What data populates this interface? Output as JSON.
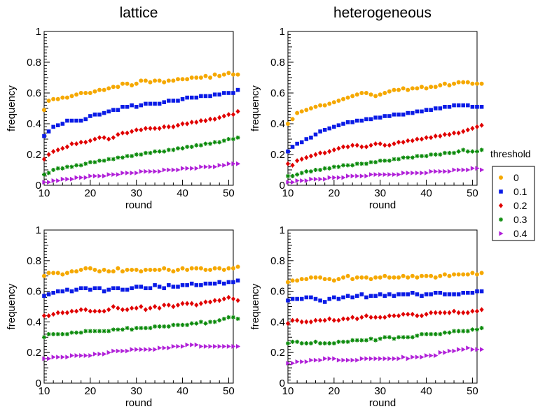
{
  "chart_data": [
    {
      "type": "scatter",
      "panel": "top-left",
      "title": "lattice",
      "xlabel": "round",
      "ylabel": "frequency",
      "xlim": [
        10,
        51
      ],
      "ylim": [
        0,
        1
      ],
      "xticks": [
        10,
        20,
        30,
        40,
        50
      ],
      "yticks": [
        0,
        0.2,
        0.4,
        0.6,
        0.8,
        1
      ],
      "ytick_labels": [
        "0",
        "0.2",
        "0.4",
        "0.6",
        "0.8",
        "1"
      ],
      "grid": false,
      "series": [
        {
          "name": "0",
          "values": [
            0.49,
            0.55,
            0.56,
            0.56,
            0.57,
            0.57,
            0.58,
            0.59,
            0.6,
            0.6,
            0.6,
            0.61,
            0.62,
            0.62,
            0.63,
            0.64,
            0.64,
            0.66,
            0.66,
            0.65,
            0.66,
            0.68,
            0.68,
            0.67,
            0.68,
            0.68,
            0.67,
            0.68,
            0.68,
            0.69,
            0.69,
            0.69,
            0.7,
            0.7,
            0.7,
            0.71,
            0.7,
            0.72,
            0.71,
            0.72,
            0.73,
            0.72,
            0.72
          ]
        },
        {
          "name": "0.1",
          "values": [
            0.32,
            0.35,
            0.38,
            0.39,
            0.4,
            0.42,
            0.42,
            0.42,
            0.42,
            0.43,
            0.45,
            0.46,
            0.46,
            0.47,
            0.48,
            0.49,
            0.49,
            0.51,
            0.51,
            0.52,
            0.51,
            0.52,
            0.53,
            0.53,
            0.53,
            0.53,
            0.54,
            0.55,
            0.55,
            0.55,
            0.56,
            0.57,
            0.57,
            0.57,
            0.58,
            0.58,
            0.58,
            0.59,
            0.59,
            0.6,
            0.6,
            0.6,
            0.62
          ]
        },
        {
          "name": "0.2",
          "values": [
            0.17,
            0.2,
            0.22,
            0.23,
            0.24,
            0.25,
            0.27,
            0.27,
            0.28,
            0.28,
            0.29,
            0.3,
            0.31,
            0.31,
            0.3,
            0.31,
            0.33,
            0.34,
            0.34,
            0.35,
            0.36,
            0.36,
            0.37,
            0.37,
            0.37,
            0.37,
            0.38,
            0.38,
            0.38,
            0.39,
            0.4,
            0.4,
            0.41,
            0.41,
            0.42,
            0.42,
            0.43,
            0.43,
            0.44,
            0.45,
            0.46,
            0.46,
            0.48
          ]
        },
        {
          "name": "0.3",
          "values": [
            0.07,
            0.08,
            0.1,
            0.11,
            0.11,
            0.12,
            0.12,
            0.13,
            0.13,
            0.14,
            0.15,
            0.15,
            0.16,
            0.16,
            0.17,
            0.17,
            0.18,
            0.18,
            0.19,
            0.19,
            0.2,
            0.2,
            0.21,
            0.21,
            0.22,
            0.22,
            0.22,
            0.23,
            0.23,
            0.24,
            0.24,
            0.25,
            0.25,
            0.26,
            0.26,
            0.27,
            0.27,
            0.28,
            0.28,
            0.29,
            0.3,
            0.3,
            0.31
          ]
        },
        {
          "name": "0.4",
          "values": [
            0.02,
            0.02,
            0.03,
            0.03,
            0.04,
            0.04,
            0.04,
            0.05,
            0.05,
            0.05,
            0.06,
            0.06,
            0.06,
            0.06,
            0.07,
            0.07,
            0.07,
            0.08,
            0.08,
            0.08,
            0.08,
            0.09,
            0.09,
            0.09,
            0.09,
            0.09,
            0.1,
            0.1,
            0.1,
            0.1,
            0.11,
            0.11,
            0.11,
            0.11,
            0.12,
            0.12,
            0.12,
            0.12,
            0.13,
            0.13,
            0.14,
            0.14,
            0.14
          ]
        }
      ]
    },
    {
      "type": "scatter",
      "panel": "top-right",
      "title": "heterogeneous",
      "xlabel": "round",
      "ylabel": "frequency",
      "xlim": [
        10,
        51
      ],
      "ylim": [
        0,
        1
      ],
      "xticks": [
        10,
        20,
        30,
        40,
        50
      ],
      "yticks": [
        0,
        0.2,
        0.4,
        0.6,
        0.8,
        1
      ],
      "ytick_labels": [
        "0",
        "0.2",
        "0.4",
        "0.6",
        "0.8",
        "1"
      ],
      "grid": false,
      "series": [
        {
          "name": "0",
          "values": [
            0.4,
            0.43,
            0.47,
            0.48,
            0.49,
            0.5,
            0.51,
            0.52,
            0.52,
            0.53,
            0.54,
            0.55,
            0.56,
            0.57,
            0.58,
            0.59,
            0.6,
            0.6,
            0.59,
            0.58,
            0.59,
            0.6,
            0.61,
            0.62,
            0.62,
            0.63,
            0.62,
            0.63,
            0.63,
            0.64,
            0.63,
            0.64,
            0.64,
            0.65,
            0.66,
            0.65,
            0.66,
            0.67,
            0.67,
            0.67,
            0.66,
            0.66,
            0.66
          ]
        },
        {
          "name": "0.1",
          "values": [
            0.22,
            0.25,
            0.27,
            0.28,
            0.3,
            0.31,
            0.33,
            0.35,
            0.36,
            0.37,
            0.38,
            0.39,
            0.4,
            0.41,
            0.41,
            0.42,
            0.42,
            0.43,
            0.43,
            0.44,
            0.44,
            0.45,
            0.45,
            0.46,
            0.46,
            0.46,
            0.47,
            0.47,
            0.48,
            0.48,
            0.49,
            0.49,
            0.5,
            0.5,
            0.51,
            0.51,
            0.52,
            0.52,
            0.52,
            0.52,
            0.51,
            0.51,
            0.51
          ]
        },
        {
          "name": "0.2",
          "values": [
            0.14,
            0.13,
            0.16,
            0.17,
            0.18,
            0.19,
            0.2,
            0.21,
            0.21,
            0.22,
            0.23,
            0.24,
            0.25,
            0.25,
            0.26,
            0.26,
            0.25,
            0.25,
            0.26,
            0.27,
            0.27,
            0.26,
            0.26,
            0.27,
            0.28,
            0.28,
            0.29,
            0.29,
            0.3,
            0.3,
            0.31,
            0.31,
            0.32,
            0.32,
            0.33,
            0.33,
            0.34,
            0.34,
            0.35,
            0.36,
            0.37,
            0.38,
            0.39
          ]
        },
        {
          "name": "0.3",
          "values": [
            0.06,
            0.06,
            0.07,
            0.08,
            0.09,
            0.09,
            0.1,
            0.1,
            0.11,
            0.11,
            0.12,
            0.12,
            0.13,
            0.13,
            0.13,
            0.14,
            0.14,
            0.14,
            0.15,
            0.15,
            0.16,
            0.16,
            0.16,
            0.17,
            0.17,
            0.18,
            0.18,
            0.18,
            0.19,
            0.19,
            0.19,
            0.2,
            0.2,
            0.2,
            0.21,
            0.21,
            0.21,
            0.22,
            0.23,
            0.22,
            0.22,
            0.22,
            0.23
          ]
        },
        {
          "name": "0.4",
          "values": [
            0.02,
            0.02,
            0.03,
            0.03,
            0.03,
            0.04,
            0.04,
            0.04,
            0.04,
            0.05,
            0.05,
            0.05,
            0.05,
            0.06,
            0.06,
            0.06,
            0.06,
            0.06,
            0.07,
            0.07,
            0.07,
            0.07,
            0.07,
            0.07,
            0.07,
            0.08,
            0.08,
            0.08,
            0.08,
            0.08,
            0.08,
            0.09,
            0.09,
            0.09,
            0.09,
            0.09,
            0.1,
            0.1,
            0.1,
            0.1,
            0.11,
            0.11,
            0.1
          ]
        }
      ]
    },
    {
      "type": "scatter",
      "panel": "bottom-left",
      "title": "",
      "xlabel": "round",
      "ylabel": "frequency",
      "xlim": [
        10,
        51
      ],
      "ylim": [
        0,
        1
      ],
      "xticks": [
        10,
        20,
        30,
        40,
        50
      ],
      "yticks": [
        0,
        0.2,
        0.4,
        0.6,
        0.8,
        1
      ],
      "ytick_labels": [
        "0",
        "0.2",
        "0.4",
        "0.6",
        "0.8",
        "1"
      ],
      "grid": false,
      "series": [
        {
          "name": "0",
          "values": [
            0.7,
            0.72,
            0.72,
            0.72,
            0.71,
            0.72,
            0.73,
            0.73,
            0.74,
            0.75,
            0.75,
            0.74,
            0.73,
            0.74,
            0.73,
            0.73,
            0.75,
            0.73,
            0.74,
            0.74,
            0.74,
            0.73,
            0.74,
            0.74,
            0.74,
            0.74,
            0.75,
            0.74,
            0.73,
            0.74,
            0.75,
            0.74,
            0.75,
            0.75,
            0.75,
            0.74,
            0.74,
            0.75,
            0.75,
            0.74,
            0.75,
            0.75,
            0.76
          ]
        },
        {
          "name": "0.1",
          "values": [
            0.57,
            0.58,
            0.59,
            0.6,
            0.6,
            0.61,
            0.6,
            0.61,
            0.62,
            0.62,
            0.61,
            0.62,
            0.62,
            0.6,
            0.61,
            0.62,
            0.62,
            0.61,
            0.61,
            0.62,
            0.63,
            0.63,
            0.62,
            0.62,
            0.64,
            0.63,
            0.62,
            0.64,
            0.63,
            0.63,
            0.64,
            0.64,
            0.65,
            0.64,
            0.64,
            0.65,
            0.65,
            0.65,
            0.66,
            0.65,
            0.66,
            0.66,
            0.67
          ]
        },
        {
          "name": "0.2",
          "values": [
            0.44,
            0.44,
            0.45,
            0.46,
            0.46,
            0.46,
            0.47,
            0.47,
            0.48,
            0.48,
            0.47,
            0.47,
            0.47,
            0.47,
            0.48,
            0.5,
            0.49,
            0.48,
            0.48,
            0.49,
            0.49,
            0.5,
            0.48,
            0.49,
            0.5,
            0.49,
            0.51,
            0.51,
            0.5,
            0.51,
            0.52,
            0.52,
            0.52,
            0.51,
            0.52,
            0.53,
            0.53,
            0.54,
            0.54,
            0.55,
            0.56,
            0.55,
            0.54
          ]
        },
        {
          "name": "0.3",
          "values": [
            0.3,
            0.32,
            0.32,
            0.32,
            0.32,
            0.32,
            0.33,
            0.33,
            0.33,
            0.34,
            0.34,
            0.34,
            0.34,
            0.34,
            0.34,
            0.35,
            0.35,
            0.35,
            0.36,
            0.35,
            0.36,
            0.36,
            0.36,
            0.36,
            0.37,
            0.37,
            0.37,
            0.37,
            0.38,
            0.38,
            0.38,
            0.38,
            0.39,
            0.39,
            0.4,
            0.39,
            0.4,
            0.4,
            0.41,
            0.42,
            0.43,
            0.43,
            0.42
          ]
        },
        {
          "name": "0.4",
          "values": [
            0.16,
            0.16,
            0.17,
            0.17,
            0.17,
            0.17,
            0.18,
            0.18,
            0.18,
            0.18,
            0.18,
            0.19,
            0.19,
            0.19,
            0.2,
            0.21,
            0.21,
            0.21,
            0.21,
            0.22,
            0.22,
            0.22,
            0.22,
            0.22,
            0.22,
            0.23,
            0.23,
            0.23,
            0.24,
            0.24,
            0.24,
            0.25,
            0.25,
            0.25,
            0.24,
            0.24,
            0.24,
            0.24,
            0.24,
            0.24,
            0.24,
            0.24,
            0.24
          ]
        }
      ]
    },
    {
      "type": "scatter",
      "panel": "bottom-right",
      "title": "",
      "xlabel": "round",
      "ylabel": "frequency",
      "xlim": [
        10,
        51
      ],
      "ylim": [
        0,
        1
      ],
      "xticks": [
        10,
        20,
        30,
        40,
        50
      ],
      "yticks": [
        0,
        0.2,
        0.4,
        0.6,
        0.8,
        1
      ],
      "ytick_labels": [
        "0",
        "0.2",
        "0.4",
        "0.6",
        "0.8",
        "1"
      ],
      "grid": false,
      "series": [
        {
          "name": "0",
          "values": [
            0.66,
            0.67,
            0.67,
            0.68,
            0.68,
            0.69,
            0.69,
            0.69,
            0.68,
            0.68,
            0.67,
            0.68,
            0.69,
            0.7,
            0.68,
            0.69,
            0.69,
            0.69,
            0.68,
            0.69,
            0.69,
            0.7,
            0.69,
            0.69,
            0.69,
            0.7,
            0.69,
            0.7,
            0.69,
            0.7,
            0.7,
            0.7,
            0.69,
            0.7,
            0.71,
            0.7,
            0.71,
            0.71,
            0.71,
            0.71,
            0.72,
            0.71,
            0.72
          ]
        },
        {
          "name": "0.1",
          "values": [
            0.54,
            0.55,
            0.55,
            0.55,
            0.56,
            0.56,
            0.55,
            0.54,
            0.53,
            0.55,
            0.56,
            0.55,
            0.56,
            0.57,
            0.56,
            0.57,
            0.58,
            0.56,
            0.57,
            0.57,
            0.58,
            0.57,
            0.58,
            0.57,
            0.58,
            0.58,
            0.58,
            0.59,
            0.58,
            0.57,
            0.58,
            0.58,
            0.59,
            0.59,
            0.58,
            0.58,
            0.58,
            0.58,
            0.59,
            0.59,
            0.59,
            0.6,
            0.6
          ]
        },
        {
          "name": "0.2",
          "values": [
            0.39,
            0.41,
            0.41,
            0.4,
            0.4,
            0.4,
            0.41,
            0.41,
            0.41,
            0.42,
            0.41,
            0.41,
            0.42,
            0.42,
            0.43,
            0.42,
            0.43,
            0.44,
            0.43,
            0.43,
            0.43,
            0.43,
            0.44,
            0.44,
            0.44,
            0.45,
            0.45,
            0.45,
            0.44,
            0.44,
            0.45,
            0.46,
            0.46,
            0.46,
            0.46,
            0.46,
            0.47,
            0.46,
            0.46,
            0.46,
            0.47,
            0.47,
            0.48
          ]
        },
        {
          "name": "0.3",
          "values": [
            0.26,
            0.27,
            0.27,
            0.26,
            0.26,
            0.26,
            0.27,
            0.26,
            0.26,
            0.26,
            0.26,
            0.27,
            0.27,
            0.27,
            0.28,
            0.28,
            0.28,
            0.28,
            0.29,
            0.28,
            0.29,
            0.3,
            0.3,
            0.29,
            0.3,
            0.3,
            0.3,
            0.3,
            0.31,
            0.32,
            0.32,
            0.32,
            0.32,
            0.32,
            0.33,
            0.33,
            0.34,
            0.34,
            0.34,
            0.34,
            0.35,
            0.35,
            0.36
          ]
        },
        {
          "name": "0.4",
          "values": [
            0.13,
            0.13,
            0.14,
            0.14,
            0.14,
            0.15,
            0.15,
            0.15,
            0.16,
            0.16,
            0.16,
            0.15,
            0.15,
            0.15,
            0.15,
            0.15,
            0.16,
            0.16,
            0.16,
            0.16,
            0.16,
            0.16,
            0.16,
            0.16,
            0.16,
            0.17,
            0.16,
            0.17,
            0.17,
            0.17,
            0.18,
            0.18,
            0.18,
            0.2,
            0.2,
            0.21,
            0.21,
            0.22,
            0.22,
            0.23,
            0.22,
            0.22,
            0.22
          ]
        }
      ]
    }
  ],
  "legend": {
    "title": "threshold",
    "placement": "right",
    "entries": [
      {
        "label": "0",
        "color": "#f5a800",
        "marker": "circle"
      },
      {
        "label": "0.1",
        "color": "#0a1be6",
        "marker": "square"
      },
      {
        "label": "0.2",
        "color": "#e00000",
        "marker": "diamond"
      },
      {
        "label": "0.3",
        "color": "#0a8a0a",
        "marker": "star"
      },
      {
        "label": "0.4",
        "color": "#b020d8",
        "marker": "triangle-right"
      }
    ]
  }
}
